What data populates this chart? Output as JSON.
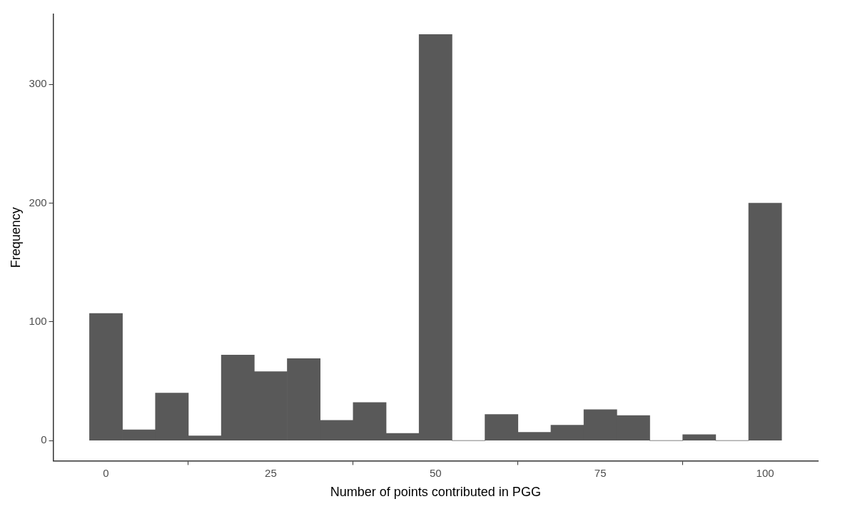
{
  "chart_data": {
    "type": "histogram",
    "xlabel": "Number of points contributed in PGG",
    "ylabel": "Frequency",
    "bins": [
      -2.5,
      2.5,
      7.5,
      12.5,
      17.5,
      22.5,
      27.5,
      32.5,
      37.5,
      42.5,
      47.5,
      52.5,
      57.5,
      62.5,
      67.5,
      72.5,
      77.5,
      82.5,
      87.5,
      92.5,
      97.5,
      102.5
    ],
    "values": [
      107,
      9,
      40,
      4,
      72,
      58,
      69,
      17,
      32,
      6,
      342,
      0,
      22,
      7,
      13,
      26,
      21,
      0,
      5,
      0,
      200
    ],
    "color": "#595959",
    "xlim": [
      -8,
      108
    ],
    "xticks": [
      0,
      25,
      50,
      75,
      100
    ],
    "ylim": [
      -17,
      359
    ],
    "yticks": [
      0,
      100,
      200,
      300
    ],
    "grid": false,
    "legend": false
  }
}
